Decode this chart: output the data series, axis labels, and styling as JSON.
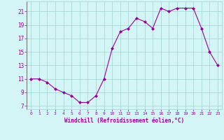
{
  "x": [
    0,
    1,
    2,
    3,
    4,
    5,
    6,
    7,
    8,
    9,
    10,
    11,
    12,
    13,
    14,
    15,
    16,
    17,
    18,
    19,
    20,
    21,
    22,
    23
  ],
  "y": [
    11.0,
    11.0,
    10.5,
    9.5,
    9.0,
    8.5,
    7.5,
    7.5,
    8.5,
    11.0,
    15.5,
    18.0,
    18.5,
    20.0,
    19.5,
    18.5,
    21.5,
    21.0,
    21.5,
    21.5,
    21.5,
    18.5,
    15.0,
    13.0
  ],
  "line_color": "#990099",
  "marker": "D",
  "marker_size": 2.0,
  "bg_color": "#d4f5f5",
  "grid_color": "#aad8d8",
  "xlabel": "Windchill (Refroidissement éolien,°C)",
  "yticks": [
    7,
    9,
    11,
    13,
    15,
    17,
    19,
    21
  ],
  "ylim": [
    6.5,
    22.5
  ],
  "xlim": [
    -0.5,
    23.5
  ],
  "tick_color": "#990099",
  "label_color": "#990099",
  "font_family": "monospace",
  "xtick_fontsize": 4.5,
  "ytick_fontsize": 5.5,
  "xlabel_fontsize": 5.5
}
